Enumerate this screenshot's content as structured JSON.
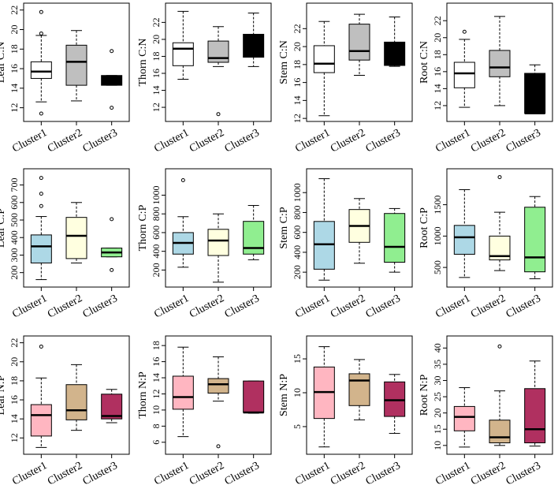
{
  "chart_data": [
    {
      "type": "box",
      "ylabel": "Leaf C:N",
      "ylim": [
        11,
        22.3
      ],
      "yticks": [
        12,
        14,
        16,
        18,
        20,
        22
      ],
      "categories": [
        "Cluster1",
        "Cluster2",
        "Cluster3"
      ],
      "colors": [
        "#ffffff",
        "#bfbfbf",
        "#000000"
      ],
      "boxes": [
        {
          "min": 12.6,
          "q1": 15.0,
          "median": 15.7,
          "q3": 16.7,
          "max": 19.4,
          "outliers": [
            21.8,
            19.6,
            11.4
          ]
        },
        {
          "min": 12.7,
          "q1": 14.3,
          "median": 16.7,
          "q3": 18.4,
          "max": 19.9,
          "outliers": []
        },
        {
          "min": 14.3,
          "q1": 14.3,
          "median": 15.1,
          "q3": 15.3,
          "max": 15.3,
          "outliers": [
            17.8,
            12.0
          ]
        }
      ]
    },
    {
      "type": "box",
      "ylabel": "Thorn C:N",
      "ylim": [
        10.8,
        23.8
      ],
      "yticks": [
        12,
        14,
        16,
        18,
        20,
        22
      ],
      "categories": [
        "Cluster1",
        "Cluster2",
        "Cluster3"
      ],
      "colors": [
        "#ffffff",
        "#bfbfbf",
        "#000000"
      ],
      "boxes": [
        {
          "min": 15.3,
          "q1": 16.9,
          "median": 18.9,
          "q3": 19.6,
          "max": 23.3,
          "outliers": []
        },
        {
          "min": 16.8,
          "q1": 17.3,
          "median": 17.8,
          "q3": 19.8,
          "max": 21.5,
          "outliers": [
            11.2
          ]
        },
        {
          "min": 16.8,
          "q1": 17.9,
          "median": 18.9,
          "q3": 20.6,
          "max": 23.1,
          "outliers": []
        }
      ]
    },
    {
      "type": "box",
      "ylabel": "Stem C:N",
      "ylim": [
        12.1,
        24.4
      ],
      "yticks": [
        12,
        14,
        16,
        18,
        20,
        22
      ],
      "categories": [
        "Cluster1",
        "Cluster2",
        "Cluster3"
      ],
      "colors": [
        "#ffffff",
        "#bfbfbf",
        "#000000"
      ],
      "boxes": [
        {
          "min": 12.3,
          "q1": 17.1,
          "median": 18.1,
          "q3": 20.1,
          "max": 22.8,
          "outliers": []
        },
        {
          "min": 16.8,
          "q1": 18.5,
          "median": 19.5,
          "q3": 22.5,
          "max": 23.6,
          "outliers": []
        },
        {
          "min": 17.8,
          "q1": 17.9,
          "median": 19.3,
          "q3": 20.5,
          "max": 23.3,
          "outliers": []
        }
      ]
    },
    {
      "type": "box",
      "ylabel": "Root C:N",
      "ylim": [
        10.6,
        23.6
      ],
      "yticks": [
        12,
        14,
        16,
        18,
        20,
        22
      ],
      "categories": [
        "Cluster1",
        "Cluster2",
        "Cluster3"
      ],
      "colors": [
        "#ffffff",
        "#bfbfbf",
        "#000000"
      ],
      "boxes": [
        {
          "min": 11.8,
          "q1": 14.1,
          "median": 15.8,
          "q3": 17.1,
          "max": 19.8,
          "outliers": [
            20.7
          ]
        },
        {
          "min": 12.0,
          "q1": 15.4,
          "median": 16.5,
          "q3": 18.5,
          "max": 22.5,
          "outliers": []
        },
        {
          "min": 11.1,
          "q1": 11.1,
          "median": 11.1,
          "q3": 15.8,
          "max": 16.8,
          "outliers": []
        }
      ]
    },
    {
      "type": "box",
      "ylabel": "Leaf C:P",
      "ylim": [
        140,
        770
      ],
      "yticks": [
        200,
        300,
        400,
        500,
        600,
        700
      ],
      "categories": [
        "Cluster1",
        "Cluster2",
        "Cluster3"
      ],
      "colors": [
        "#add8e6",
        "#ffffe0",
        "#90ee90"
      ],
      "boxes": [
        {
          "min": 160,
          "q1": 255,
          "median": 350,
          "q3": 415,
          "max": 520,
          "outliers": [
            740,
            650,
            580
          ]
        },
        {
          "min": 255,
          "q1": 280,
          "median": 410,
          "q3": 515,
          "max": 600,
          "outliers": []
        },
        {
          "min": 290,
          "q1": 290,
          "median": 315,
          "q3": 340,
          "max": 340,
          "outliers": [
            505,
            215
          ]
        }
      ]
    },
    {
      "type": "box",
      "ylabel": "Thorn C:P",
      "ylim": [
        60,
        1240
      ],
      "yticks": [
        200,
        400,
        600,
        800,
        1000
      ],
      "categories": [
        "Cluster1",
        "Cluster2",
        "Cluster3"
      ],
      "colors": [
        "#add8e6",
        "#ffffe0",
        "#90ee90"
      ],
      "boxes": [
        {
          "min": 230,
          "q1": 370,
          "median": 490,
          "q3": 600,
          "max": 770,
          "outliers": [
            1160
          ]
        },
        {
          "min": 70,
          "q1": 355,
          "median": 515,
          "q3": 635,
          "max": 800,
          "outliers": []
        },
        {
          "min": 310,
          "q1": 370,
          "median": 435,
          "q3": 720,
          "max": 890,
          "outliers": []
        }
      ]
    },
    {
      "type": "box",
      "ylabel": "Stem C:P",
      "ylim": [
        90,
        1200
      ],
      "yticks": [
        200,
        400,
        600,
        800,
        1000
      ],
      "categories": [
        "Cluster1",
        "Cluster2",
        "Cluster3"
      ],
      "colors": [
        "#add8e6",
        "#ffffe0",
        "#90ee90"
      ],
      "boxes": [
        {
          "min": 120,
          "q1": 230,
          "median": 480,
          "q3": 710,
          "max": 1140,
          "outliers": []
        },
        {
          "min": 290,
          "q1": 500,
          "median": 665,
          "q3": 830,
          "max": 940,
          "outliers": []
        },
        {
          "min": 200,
          "q1": 300,
          "median": 455,
          "q3": 790,
          "max": 840,
          "outliers": []
        }
      ]
    },
    {
      "type": "box",
      "ylabel": "Root C:P",
      "ylim": [
        250,
        2010
      ],
      "yticks": [
        500,
        1000,
        1500
      ],
      "categories": [
        "Cluster1",
        "Cluster2",
        "Cluster3"
      ],
      "colors": [
        "#add8e6",
        "#ffffe0",
        "#90ee90"
      ],
      "boxes": [
        {
          "min": 340,
          "q1": 710,
          "median": 980,
          "q3": 1170,
          "max": 1740,
          "outliers": []
        },
        {
          "min": 450,
          "q1": 620,
          "median": 680,
          "q3": 1000,
          "max": 1380,
          "outliers": [
            1940
          ]
        },
        {
          "min": 320,
          "q1": 430,
          "median": 660,
          "q3": 1460,
          "max": 1630,
          "outliers": []
        }
      ]
    },
    {
      "type": "box",
      "ylabel": "Leaf N:P",
      "ylim": [
        10.7,
        22.3
      ],
      "yticks": [
        12,
        14,
        16,
        18,
        20,
        22
      ],
      "categories": [
        "Cluster1",
        "Cluster2",
        "Cluster3"
      ],
      "colors": [
        "#ffb6c1",
        "#d2b48c",
        "#b03060"
      ],
      "boxes": [
        {
          "min": 11.0,
          "q1": 12.2,
          "median": 14.4,
          "q3": 15.5,
          "max": 18.3,
          "outliers": [
            21.6
          ]
        },
        {
          "min": 12.8,
          "q1": 13.9,
          "median": 14.9,
          "q3": 17.6,
          "max": 19.7,
          "outliers": []
        },
        {
          "min": 13.6,
          "q1": 14.0,
          "median": 14.3,
          "q3": 16.6,
          "max": 17.1,
          "outliers": []
        }
      ]
    },
    {
      "type": "box",
      "ylabel": "Thorn N:P",
      "ylim": [
        5,
        18.7
      ],
      "yticks": [
        6,
        8,
        10,
        12,
        14,
        16,
        18
      ],
      "categories": [
        "Cluster1",
        "Cluster2",
        "Cluster3"
      ],
      "colors": [
        "#ffb6c1",
        "#d2b48c",
        "#b03060"
      ],
      "boxes": [
        {
          "min": 6.7,
          "q1": 10.1,
          "median": 11.6,
          "q3": 14.2,
          "max": 17.8,
          "outliers": []
        },
        {
          "min": 11.1,
          "q1": 12.1,
          "median": 13.2,
          "q3": 13.9,
          "max": 16.6,
          "outliers": [
            5.5
          ]
        },
        {
          "min": 9.6,
          "q1": 9.7,
          "median": 9.7,
          "q3": 13.6,
          "max": 13.6,
          "outliers": []
        }
      ]
    },
    {
      "type": "box",
      "ylabel": "Stem N:P",
      "ylim": [
        1.5,
        17.8
      ],
      "yticks": [
        5,
        10,
        15
      ],
      "categories": [
        "Cluster1",
        "Cluster2",
        "Cluster3"
      ],
      "colors": [
        "#ffb6c1",
        "#d2b48c",
        "#b03060"
      ],
      "boxes": [
        {
          "min": 2.0,
          "q1": 6.2,
          "median": 10.1,
          "q3": 13.8,
          "max": 16.8,
          "outliers": []
        },
        {
          "min": 6.0,
          "q1": 8.1,
          "median": 11.8,
          "q3": 12.8,
          "max": 14.9,
          "outliers": []
        },
        {
          "min": 4.0,
          "q1": 6.5,
          "median": 8.9,
          "q3": 11.6,
          "max": 12.7,
          "outliers": []
        }
      ]
    },
    {
      "type": "box",
      "ylabel": "Root N:P",
      "ylim": [
        8.5,
        42.5
      ],
      "yticks": [
        10,
        15,
        20,
        25,
        30,
        35,
        40
      ],
      "categories": [
        "Cluster1",
        "Cluster2",
        "Cluster3"
      ],
      "colors": [
        "#ffb6c1",
        "#d2b48c",
        "#b03060"
      ],
      "boxes": [
        {
          "min": 9.5,
          "q1": 14.5,
          "median": 18.8,
          "q3": 22.0,
          "max": 27.8,
          "outliers": []
        },
        {
          "min": 10.0,
          "q1": 10.8,
          "median": 12.5,
          "q3": 17.8,
          "max": 26.8,
          "outliers": [
            40.5
          ]
        },
        {
          "min": 9.8,
          "q1": 10.8,
          "median": 15.0,
          "q3": 27.5,
          "max": 36.0,
          "outliers": []
        }
      ]
    }
  ]
}
